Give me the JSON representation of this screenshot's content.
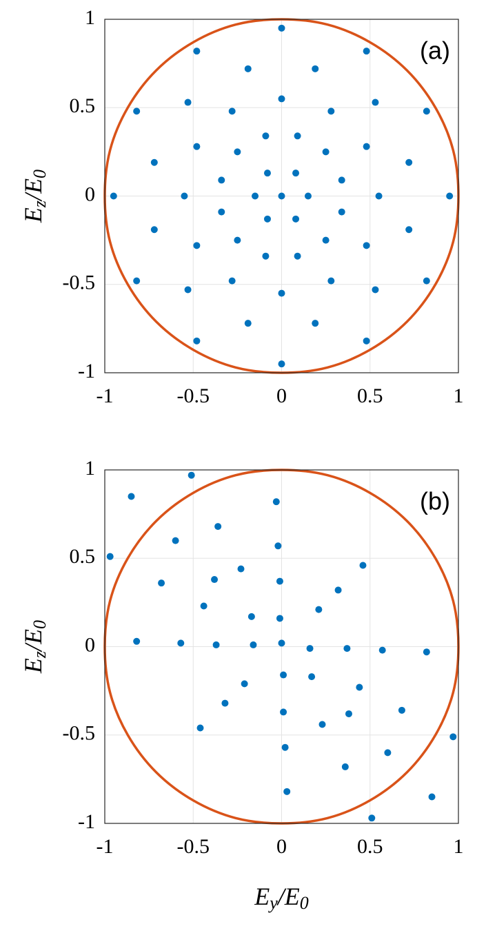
{
  "chart_data": [
    {
      "type": "scatter",
      "panel_label": "(a)",
      "ylabel": [
        "E",
        "z",
        "/E",
        "0"
      ],
      "xlim": [
        -1,
        1
      ],
      "ylim": [
        -1,
        1
      ],
      "xticks": [
        -1,
        -0.5,
        0,
        0.5,
        1
      ],
      "yticks": [
        -1,
        -0.5,
        0,
        0.5,
        1
      ],
      "grid": true,
      "series": [
        {
          "color": "#0072bd",
          "x": [
            0.95,
            0.82,
            0.48,
            0,
            -0.48,
            -0.82,
            -0.95,
            -0.82,
            -0.48,
            0,
            0.48,
            0.82,
            0.72,
            0.53,
            0.19,
            -0.19,
            -0.53,
            -0.72,
            -0.72,
            -0.53,
            -0.19,
            0.19,
            0.53,
            0.72,
            0.55,
            0.48,
            0.28,
            0,
            -0.28,
            -0.48,
            -0.55,
            -0.48,
            -0.28,
            0,
            0.28,
            0.48,
            0.34,
            0.25,
            0.09,
            -0.09,
            -0.25,
            -0.34,
            -0.34,
            -0.25,
            -0.09,
            0.09,
            0.25,
            0.34,
            0.15,
            0.08,
            -0.08,
            -0.15,
            -0.08,
            0.08,
            0
          ],
          "y": [
            0,
            0.48,
            0.82,
            0.95,
            0.82,
            0.48,
            0,
            -0.48,
            -0.82,
            -0.95,
            -0.82,
            -0.48,
            0.19,
            0.53,
            0.72,
            0.72,
            0.53,
            0.19,
            -0.19,
            -0.53,
            -0.72,
            -0.72,
            -0.53,
            -0.19,
            0,
            0.28,
            0.48,
            0.55,
            0.48,
            0.28,
            0,
            -0.28,
            -0.48,
            -0.55,
            -0.48,
            -0.28,
            0.09,
            0.25,
            0.34,
            0.34,
            0.25,
            0.09,
            -0.09,
            -0.25,
            -0.34,
            -0.34,
            -0.25,
            -0.09,
            0,
            0.13,
            0.13,
            0,
            -0.13,
            -0.13,
            0
          ]
        },
        {
          "color": "#d95319",
          "line": true,
          "x": [
            1,
            0.97,
            0.87,
            0.71,
            0.5,
            0.26,
            0,
            -0.26,
            -0.5,
            -0.71,
            -0.87,
            -0.97,
            -1,
            -0.97,
            -0.87,
            -0.71,
            -0.5,
            -0.26,
            0,
            0.26,
            0.5,
            0.71,
            0.87,
            0.97,
            1
          ],
          "y": [
            0,
            0.26,
            0.5,
            0.71,
            0.87,
            0.97,
            1,
            0.97,
            0.87,
            0.71,
            0.5,
            0.26,
            0,
            -0.26,
            -0.5,
            -0.71,
            -0.87,
            -0.97,
            -1,
            -0.97,
            -0.87,
            -0.71,
            -0.5,
            -0.26,
            0
          ]
        }
      ]
    },
    {
      "type": "scatter",
      "panel_label": "(b)",
      "ylabel": [
        "E",
        "z",
        "/E",
        "0"
      ],
      "xlabel": [
        "E",
        "y",
        "/E",
        "0"
      ],
      "xlim": [
        -1,
        1
      ],
      "ylim": [
        -1,
        1
      ],
      "xticks": [
        -1,
        -0.5,
        0,
        0.5,
        1
      ],
      "yticks": [
        -1,
        -0.5,
        0,
        0.5,
        1
      ],
      "grid": true,
      "series": [
        {
          "color": "#0072bd",
          "x": [
            0.85,
            0.97,
            0.82,
            0.46,
            -0.03,
            -0.51,
            -0.85,
            -0.97,
            -0.82,
            -0.46,
            0.03,
            0.51,
            0.6,
            0.68,
            0.57,
            0.32,
            -0.02,
            -0.36,
            -0.6,
            -0.68,
            -0.57,
            -0.32,
            0.02,
            0.36,
            0.38,
            0.44,
            0.37,
            0.21,
            -0.01,
            -0.23,
            -0.38,
            -0.44,
            -0.37,
            -0.21,
            0.01,
            0.23,
            0.17,
            0.16,
            -0.01,
            -0.17,
            -0.16,
            0.01,
            0
          ],
          "y": [
            -0.85,
            -0.51,
            -0.03,
            0.46,
            0.82,
            0.97,
            0.85,
            0.51,
            0.03,
            -0.46,
            -0.82,
            -0.97,
            -0.6,
            -0.36,
            -0.02,
            0.32,
            0.57,
            0.68,
            0.6,
            0.36,
            0.02,
            -0.32,
            -0.57,
            -0.68,
            -0.38,
            -0.23,
            -0.01,
            0.21,
            0.37,
            0.44,
            0.38,
            0.23,
            0.01,
            -0.21,
            -0.37,
            -0.44,
            -0.17,
            -0.01,
            0.16,
            0.17,
            0.01,
            -0.16,
            0.02
          ]
        },
        {
          "color": "#d95319",
          "line": true,
          "x": [
            1,
            0.97,
            0.87,
            0.71,
            0.5,
            0.26,
            0,
            -0.26,
            -0.5,
            -0.71,
            -0.87,
            -0.97,
            -1,
            -0.97,
            -0.87,
            -0.71,
            -0.5,
            -0.26,
            0,
            0.26,
            0.5,
            0.71,
            0.87,
            0.97,
            1
          ],
          "y": [
            0,
            0.26,
            0.5,
            0.71,
            0.87,
            0.97,
            1,
            0.97,
            0.87,
            0.71,
            0.5,
            0.26,
            0,
            -0.26,
            -0.5,
            -0.71,
            -0.87,
            -0.97,
            -1,
            -0.97,
            -0.87,
            -0.71,
            -0.5,
            -0.26,
            0
          ]
        }
      ]
    }
  ]
}
